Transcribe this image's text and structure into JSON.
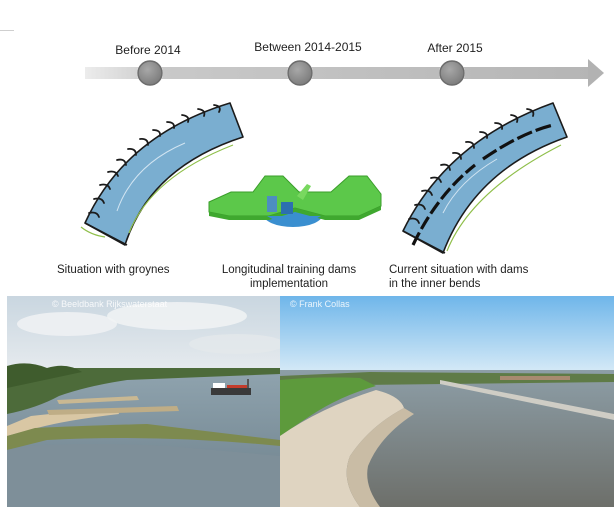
{
  "timeline": {
    "stages": [
      {
        "label": "Before 2014"
      },
      {
        "label": "Between 2014-2015"
      },
      {
        "label": "After 2015"
      }
    ]
  },
  "captions": {
    "groynes": "Situation with groynes",
    "dams_line1": "Longitudinal training dams",
    "dams_line2": "implementation",
    "current_line1": "Current situation with dams",
    "current_line2": "in the inner bends"
  },
  "photos": {
    "left_credit": "© Beeldbank Rijkswaterstaat",
    "right_credit": "© Frank Collas"
  },
  "colors": {
    "river_blue": "#7aaed0",
    "dam_green": "#5cc84a",
    "timeline_gray": "#8c8c8c",
    "arrow_gray": "#b8b8b8"
  }
}
